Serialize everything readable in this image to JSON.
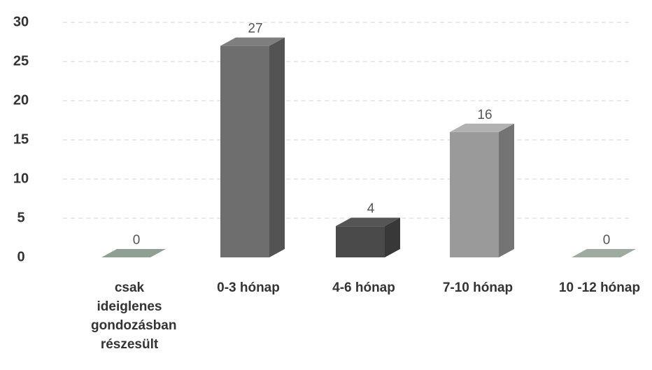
{
  "chart_data": {
    "type": "bar3d",
    "categories": [
      "csak ideiglenes gondozásban részesült",
      "0-3 hónap",
      "4-6 hónap",
      "7-10 hónap",
      "10 -12 hónap"
    ],
    "values": [
      0,
      27,
      4,
      16,
      0
    ],
    "colors": [
      "#7d8a80",
      "#6e6e6e",
      "#4a4a4a",
      "#9a9a9a",
      "#8a948c"
    ],
    "ylim": [
      0,
      30
    ],
    "yticks": [
      0,
      5,
      10,
      15,
      20,
      25,
      30
    ],
    "grid": true
  }
}
